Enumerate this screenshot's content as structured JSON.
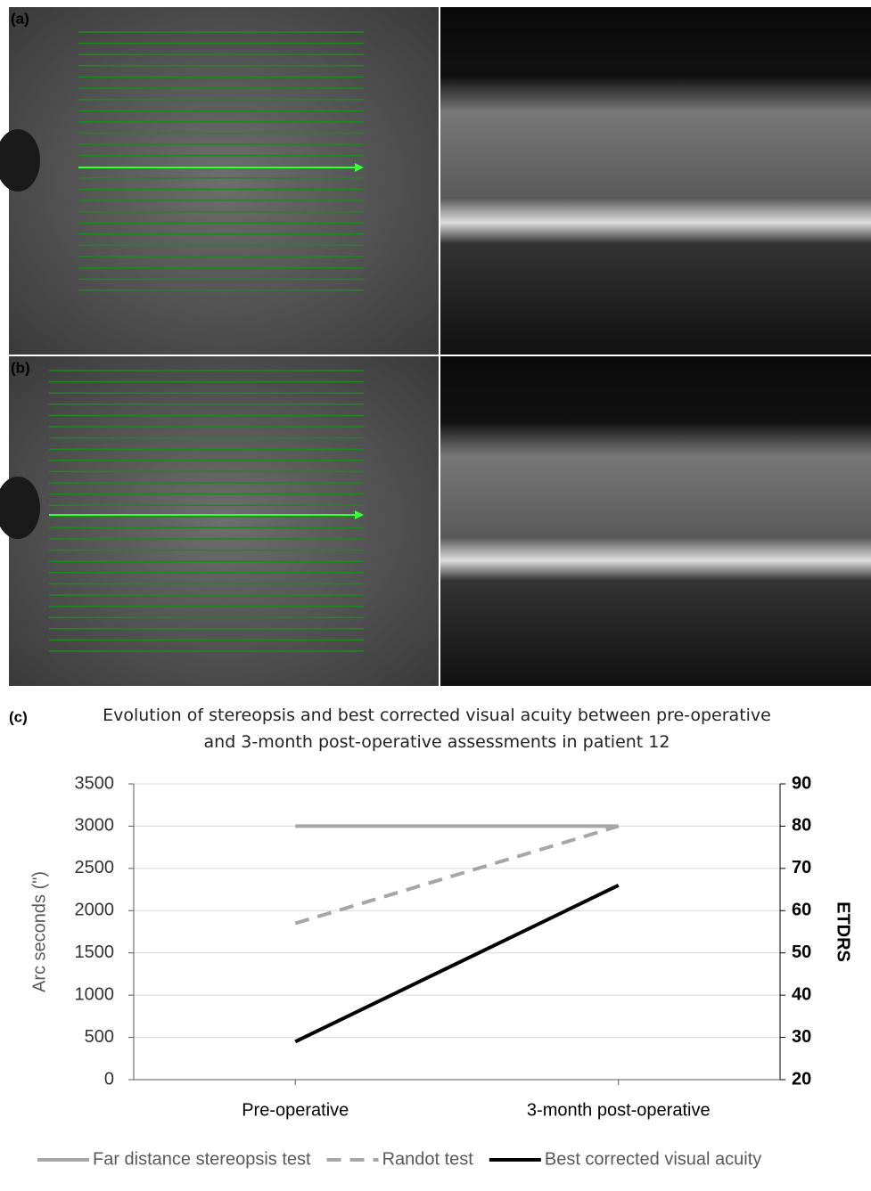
{
  "panel_labels": [
    "(a)",
    "(b)",
    "(c)"
  ],
  "chart_data": {
    "type": "line",
    "title": "Evolution of stereopsis and best corrected visual acuity between pre-operative and 3-month post-operative assessments in patient 12",
    "y_label": "Arc seconds (\")",
    "y2_label": "ETDRS",
    "categories": [
      "Pre-operative",
      "3-month post-operative"
    ],
    "series": [
      {
        "name": "Far distance stereopsis test",
        "color": "#a6a6a6",
        "style": "solid",
        "values": [
          3000,
          3000
        ]
      },
      {
        "name": "Randot test",
        "color": "#a6a6a6",
        "style": "dashed",
        "values": [
          1850,
          3000
        ]
      },
      {
        "name": "Best corrected visual acuity",
        "color": "#000000",
        "style": "solid",
        "axis": "y2",
        "values": [
          29,
          66
        ]
      }
    ],
    "ylim": [
      0,
      3500
    ],
    "yticks": [
      0,
      500,
      1000,
      1500,
      2000,
      2500,
      3000,
      3500
    ],
    "y2lim": [
      20,
      90
    ],
    "y2ticks": [
      20,
      30,
      40,
      50,
      60,
      70,
      80,
      90
    ],
    "grid": true,
    "legend": "bottom"
  }
}
